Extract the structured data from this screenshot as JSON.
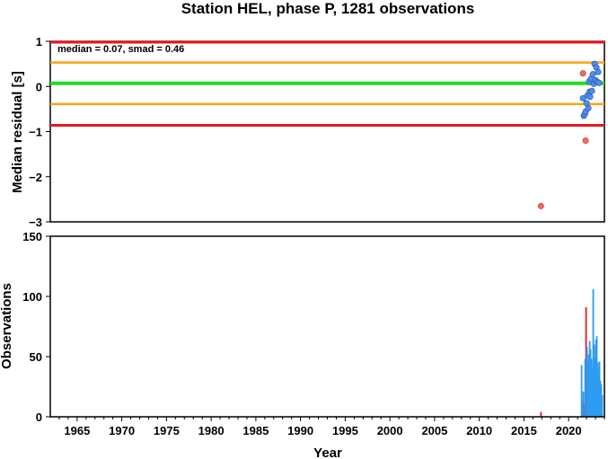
{
  "chart_data": [
    {
      "type": "scatter",
      "title": "Station HEL, phase P, 1281 observations",
      "ylabel": "Median residual [s]",
      "annotation": "median = 0.07, smad = 0.46",
      "xlim": [
        1962,
        2024
      ],
      "ylim": [
        -3,
        1
      ],
      "yticks": [
        1,
        0,
        -1,
        -2,
        -3
      ],
      "ytick_labels": [
        "1",
        "0",
        "−1",
        "−2",
        "−3"
      ],
      "reference_lines": [
        {
          "name": "upper-limit",
          "y": 0.98,
          "color": "#e8191c"
        },
        {
          "name": "upper-smad",
          "y": 0.53,
          "color": "#f5a511"
        },
        {
          "name": "median",
          "y": 0.07,
          "color": "#22dd22"
        },
        {
          "name": "lower-smad",
          "y": -0.39,
          "color": "#f5a511"
        },
        {
          "name": "lower-limit",
          "y": -0.86,
          "color": "#e8191c"
        }
      ],
      "series": [
        {
          "color": "#f26a5e",
          "points": [
            [
              2016.9,
              -2.65
            ],
            [
              2021.6,
              0.29
            ],
            [
              2021.9,
              -1.2
            ]
          ]
        },
        {
          "color": "#4f8ef0",
          "points": [
            [
              2021.6,
              -0.26
            ],
            [
              2021.7,
              -0.65
            ],
            [
              2021.8,
              -0.62
            ],
            [
              2021.9,
              -0.56
            ],
            [
              2022.0,
              -0.37
            ],
            [
              2022.1,
              -0.2
            ],
            [
              2022.2,
              -0.48
            ],
            [
              2022.3,
              0.11
            ],
            [
              2022.35,
              -0.12
            ],
            [
              2022.4,
              -0.23
            ],
            [
              2022.5,
              0.17
            ],
            [
              2022.6,
              -0.1
            ],
            [
              2022.7,
              0.27
            ],
            [
              2022.8,
              0.06
            ],
            [
              2022.9,
              0.5
            ],
            [
              2023.0,
              0.14
            ],
            [
              2023.1,
              0.42
            ],
            [
              2023.2,
              0.1
            ],
            [
              2023.3,
              0.32
            ],
            [
              2023.4,
              0.08
            ]
          ]
        }
      ]
    },
    {
      "type": "bar",
      "ylabel": "Observations",
      "xlabel": "Year",
      "xlim": [
        1962,
        2024
      ],
      "ylim": [
        0,
        150
      ],
      "yticks": [
        0,
        50,
        100,
        150
      ],
      "xticks": [
        1965,
        1970,
        1975,
        1980,
        1985,
        1990,
        1995,
        2000,
        2005,
        2010,
        2015,
        2020
      ],
      "series": [
        {
          "color": "#e8191c",
          "x": [
            2016.9,
            2021.55,
            2021.75,
            2021.95
          ],
          "values": [
            4,
            13,
            10,
            91
          ]
        },
        {
          "color": "#2c9cf0",
          "x": [
            2021.45,
            2021.65,
            2021.85,
            2022.05,
            2022.15,
            2022.25,
            2022.35,
            2022.45,
            2022.55,
            2022.65,
            2022.75,
            2022.85,
            2022.95,
            2023.05,
            2023.15,
            2023.25,
            2023.35,
            2023.45,
            2023.55,
            2023.65,
            2023.75
          ],
          "values": [
            43,
            21,
            48,
            58,
            46,
            52,
            63,
            56,
            48,
            41,
            106,
            60,
            50,
            64,
            67,
            45,
            40,
            46,
            30,
            27,
            18
          ]
        }
      ]
    }
  ]
}
